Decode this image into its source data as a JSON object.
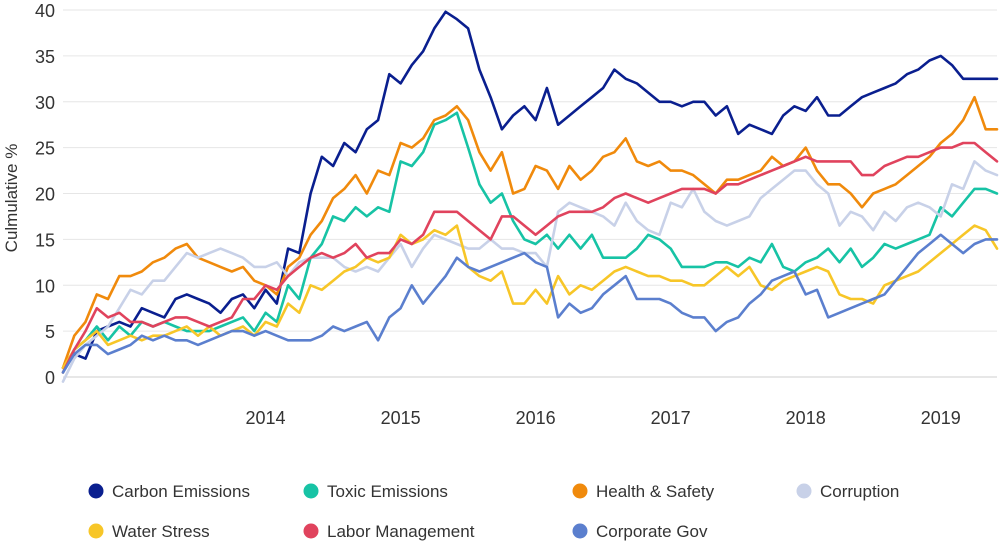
{
  "chart_data": {
    "type": "line",
    "title": "",
    "xlabel": "",
    "ylabel": "Culmulative %",
    "ylim": [
      0,
      40
    ],
    "y_ticks": [
      0,
      5,
      10,
      15,
      20,
      25,
      30,
      35,
      40
    ],
    "x_ticks": [
      "2014",
      "2015",
      "2016",
      "2017",
      "2018",
      "2019"
    ],
    "xlim": [
      "2013-01",
      "2019-12"
    ],
    "grid": "horizontal",
    "legend_position": "bottom",
    "x": [
      "2013-01",
      "2013-02",
      "2013-03",
      "2013-04",
      "2013-05",
      "2013-06",
      "2013-07",
      "2013-08",
      "2013-09",
      "2013-10",
      "2013-11",
      "2013-12",
      "2014-01",
      "2014-02",
      "2014-03",
      "2014-04",
      "2014-05",
      "2014-06",
      "2014-07",
      "2014-08",
      "2014-09",
      "2014-10",
      "2014-11",
      "2014-12",
      "2015-01",
      "2015-02",
      "2015-03",
      "2015-04",
      "2015-05",
      "2015-06",
      "2015-07",
      "2015-08",
      "2015-09",
      "2015-10",
      "2015-11",
      "2015-12",
      "2016-01",
      "2016-02",
      "2016-03",
      "2016-04",
      "2016-05",
      "2016-06",
      "2016-07",
      "2016-08",
      "2016-09",
      "2016-10",
      "2016-11",
      "2016-12",
      "2017-01",
      "2017-02",
      "2017-03",
      "2017-04",
      "2017-05",
      "2017-06",
      "2017-07",
      "2017-08",
      "2017-09",
      "2017-10",
      "2017-11",
      "2017-12",
      "2018-01",
      "2018-02",
      "2018-03",
      "2018-04",
      "2018-05",
      "2018-06",
      "2018-07",
      "2018-08",
      "2018-09",
      "2018-10",
      "2018-11",
      "2018-12",
      "2019-01",
      "2019-02",
      "2019-03",
      "2019-04",
      "2019-05",
      "2019-06",
      "2019-07",
      "2019-08",
      "2019-09",
      "2019-10",
      "2019-11",
      "2019-12"
    ],
    "series": [
      {
        "name": "Carbon Emissions",
        "color": "#0a1f8f",
        "values": [
          1.0,
          2.5,
          2.0,
          5.0,
          5.5,
          6.0,
          5.5,
          7.5,
          7.0,
          6.5,
          8.5,
          9.0,
          8.5,
          8.0,
          7.0,
          8.5,
          9.0,
          7.5,
          9.5,
          8.0,
          14.0,
          13.5,
          20.0,
          24.0,
          23.0,
          25.5,
          24.5,
          27.0,
          28.0,
          33.0,
          32.0,
          34.0,
          35.5,
          38.0,
          39.8,
          39.0,
          38.0,
          33.5,
          30.5,
          27.0,
          28.5,
          29.5,
          28.0,
          31.5,
          27.5,
          28.5,
          29.5,
          30.5,
          31.5,
          33.5,
          32.5,
          32.0,
          31.0,
          30.0,
          30.0,
          29.5,
          30.0,
          30.0,
          28.5,
          29.5,
          26.5,
          27.5,
          27.0,
          26.5,
          28.5,
          29.5,
          29.0,
          30.5,
          28.5,
          28.5,
          29.5,
          30.5,
          31.0,
          31.5,
          32.0,
          33.0,
          33.5,
          34.5,
          35.0,
          34.0,
          32.5,
          32.5,
          32.5,
          32.5
        ]
      },
      {
        "name": "Toxic Emissions",
        "color": "#17c3a5",
        "values": [
          0.5,
          3.0,
          4.0,
          5.5,
          4.0,
          5.5,
          4.5,
          6.0,
          5.5,
          6.0,
          5.5,
          5.0,
          5.0,
          5.0,
          5.5,
          6.0,
          6.5,
          5.0,
          7.0,
          6.0,
          10.0,
          8.5,
          13.0,
          14.5,
          17.5,
          17.0,
          18.5,
          17.5,
          18.5,
          18.0,
          23.5,
          23.0,
          24.5,
          27.5,
          28.0,
          28.8,
          25.0,
          21.0,
          19.0,
          20.0,
          17.0,
          15.0,
          14.5,
          15.5,
          14.0,
          15.5,
          14.0,
          15.5,
          13.0,
          13.0,
          13.0,
          14.0,
          15.5,
          15.0,
          14.0,
          12.0,
          12.0,
          12.0,
          12.5,
          12.5,
          12.0,
          13.0,
          12.5,
          14.5,
          12.0,
          11.5,
          12.5,
          13.0,
          14.0,
          12.5,
          14.0,
          12.0,
          13.0,
          14.5,
          14.0,
          14.5,
          15.0,
          15.5,
          18.5,
          17.5,
          19.0,
          20.5,
          20.5,
          20.0
        ]
      },
      {
        "name": "Health & Safety",
        "color": "#f08a0c",
        "values": [
          1.0,
          4.5,
          6.0,
          9.0,
          8.5,
          11.0,
          11.0,
          11.5,
          12.5,
          13.0,
          14.0,
          14.5,
          13.0,
          12.5,
          12.0,
          11.5,
          12.0,
          10.5,
          10.0,
          9.0,
          12.0,
          13.0,
          15.5,
          17.0,
          19.5,
          20.5,
          22.0,
          20.0,
          22.5,
          22.0,
          25.5,
          25.0,
          26.0,
          28.0,
          28.5,
          29.5,
          28.0,
          24.5,
          22.5,
          24.5,
          20.0,
          20.5,
          23.0,
          22.5,
          20.5,
          23.0,
          21.5,
          22.5,
          24.0,
          24.5,
          26.0,
          23.5,
          23.0,
          23.5,
          22.5,
          22.5,
          22.0,
          21.0,
          20.0,
          21.5,
          21.5,
          22.0,
          22.5,
          24.0,
          23.0,
          23.5,
          25.0,
          22.5,
          21.0,
          21.0,
          20.0,
          18.5,
          20.0,
          20.5,
          21.0,
          22.0,
          23.0,
          24.0,
          25.5,
          26.5,
          28.0,
          30.5,
          27.0,
          27.0
        ]
      },
      {
        "name": "Corruption",
        "color": "#c8d1e8",
        "values": [
          -0.5,
          2.0,
          3.5,
          4.5,
          5.5,
          7.5,
          9.5,
          9.0,
          10.5,
          10.5,
          12.0,
          13.5,
          13.0,
          13.5,
          14.0,
          13.5,
          13.0,
          12.0,
          12.0,
          12.5,
          11.0,
          12.5,
          13.0,
          13.0,
          13.0,
          12.0,
          11.5,
          12.0,
          11.5,
          13.0,
          14.5,
          12.0,
          14.0,
          15.5,
          15.0,
          14.5,
          14.0,
          14.0,
          15.0,
          14.0,
          14.0,
          13.5,
          13.5,
          12.0,
          18.0,
          19.0,
          18.5,
          18.0,
          17.5,
          16.5,
          19.0,
          17.0,
          16.0,
          15.5,
          19.0,
          18.5,
          20.5,
          18.0,
          17.0,
          16.5,
          17.0,
          17.5,
          19.5,
          20.5,
          21.5,
          22.5,
          22.5,
          21.0,
          20.0,
          16.5,
          18.0,
          17.5,
          16.0,
          18.0,
          17.0,
          18.5,
          19.0,
          18.5,
          17.5,
          21.0,
          20.5,
          23.5,
          22.5,
          22.0
        ]
      },
      {
        "name": "Water Stress",
        "color": "#f7c628",
        "values": [
          1.0,
          3.0,
          4.0,
          5.0,
          3.5,
          4.0,
          4.5,
          4.0,
          4.5,
          4.5,
          5.0,
          5.5,
          4.5,
          5.5,
          4.5,
          5.0,
          5.5,
          4.5,
          6.0,
          5.5,
          8.0,
          7.0,
          10.0,
          9.5,
          10.5,
          11.5,
          12.0,
          13.0,
          12.5,
          13.0,
          15.5,
          14.5,
          15.0,
          16.0,
          15.5,
          16.5,
          12.0,
          11.0,
          10.5,
          11.5,
          8.0,
          8.0,
          9.5,
          8.0,
          11.0,
          9.0,
          10.0,
          9.5,
          10.5,
          11.5,
          12.0,
          11.5,
          11.0,
          11.0,
          10.5,
          10.5,
          10.0,
          10.0,
          11.0,
          12.0,
          11.0,
          12.0,
          10.0,
          9.5,
          10.5,
          11.0,
          11.5,
          12.0,
          11.5,
          9.0,
          8.5,
          8.5,
          8.0,
          10.0,
          10.5,
          11.0,
          11.5,
          12.5,
          13.5,
          14.5,
          15.5,
          16.5,
          16.0,
          14.0
        ]
      },
      {
        "name": "Labor Management",
        "color": "#e0435d",
        "values": [
          0.5,
          3.0,
          5.0,
          7.5,
          6.5,
          7.0,
          6.0,
          6.0,
          5.5,
          6.0,
          6.5,
          6.5,
          6.0,
          5.5,
          6.0,
          6.5,
          8.5,
          8.5,
          10.0,
          9.5,
          11.0,
          12.0,
          13.0,
          13.5,
          13.0,
          13.5,
          14.5,
          13.0,
          13.5,
          13.5,
          15.0,
          14.5,
          15.5,
          18.0,
          18.0,
          18.0,
          17.0,
          16.0,
          15.0,
          17.5,
          17.5,
          16.5,
          15.5,
          16.5,
          17.5,
          18.0,
          18.0,
          18.0,
          18.5,
          19.5,
          20.0,
          19.5,
          19.0,
          19.5,
          20.0,
          20.5,
          20.5,
          20.5,
          20.0,
          21.0,
          21.0,
          21.5,
          22.0,
          22.5,
          23.0,
          23.5,
          24.0,
          23.5,
          23.5,
          23.5,
          23.5,
          22.0,
          22.0,
          23.0,
          23.5,
          24.0,
          24.0,
          24.5,
          25.0,
          25.0,
          25.5,
          25.5,
          24.5,
          23.5
        ]
      },
      {
        "name": "Corporate Gov",
        "color": "#5b7fce",
        "values": [
          0.5,
          2.5,
          3.5,
          3.5,
          2.5,
          3.0,
          3.5,
          4.5,
          4.0,
          4.5,
          4.0,
          4.0,
          3.5,
          4.0,
          4.5,
          5.0,
          5.0,
          4.5,
          5.0,
          4.5,
          4.0,
          4.0,
          4.0,
          4.5,
          5.5,
          5.0,
          5.5,
          6.0,
          4.0,
          6.5,
          7.5,
          10.0,
          8.0,
          9.5,
          11.0,
          13.0,
          12.0,
          11.5,
          12.0,
          12.5,
          13.0,
          13.5,
          12.5,
          12.0,
          6.5,
          8.0,
          7.0,
          7.5,
          9.0,
          10.0,
          11.0,
          8.5,
          8.5,
          8.5,
          8.0,
          7.0,
          6.5,
          6.5,
          5.0,
          6.0,
          6.5,
          8.0,
          9.0,
          10.5,
          11.0,
          11.5,
          9.0,
          9.5,
          6.5,
          7.0,
          7.5,
          8.0,
          8.5,
          9.0,
          10.5,
          12.0,
          13.5,
          14.5,
          15.5,
          14.5,
          13.5,
          14.5,
          15.0,
          15.0
        ]
      }
    ]
  }
}
